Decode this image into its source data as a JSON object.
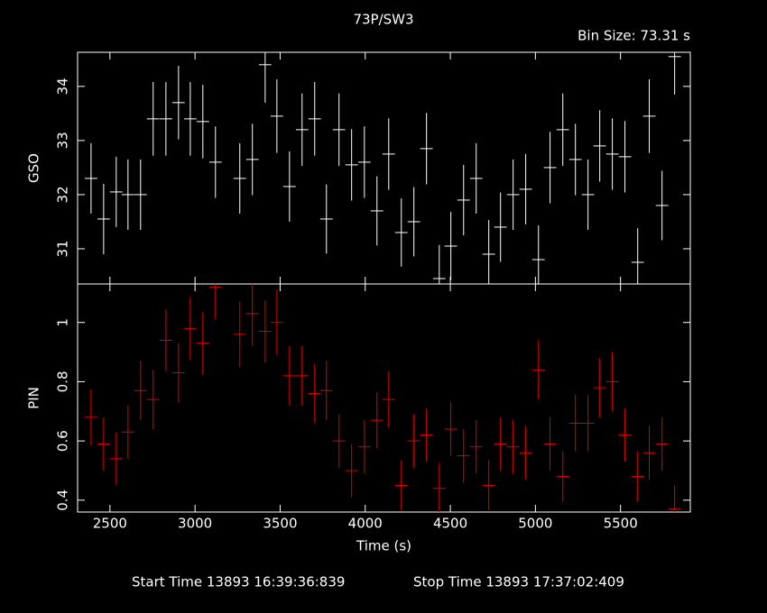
{
  "title": "73P/SW3",
  "subtitle": "Bin Size: 73.31 s",
  "footer": {
    "start": "Start Time 13893 16:39:36:839",
    "stop": "Stop Time 13893 17:37:02:409"
  },
  "chart_data": [
    {
      "type": "errorbar",
      "ylabel": "GSO",
      "x": [
        2389,
        2463,
        2537,
        2606,
        2680,
        2754,
        2829,
        2903,
        2972,
        3046,
        3120,
        3263,
        3337,
        3412,
        3481,
        3555,
        3629,
        3703,
        3772,
        3846,
        3920,
        3995,
        4069,
        4138,
        4212,
        4286,
        4360,
        4435,
        4503,
        4578,
        4652,
        4726,
        4795,
        4869,
        4943,
        5018,
        5086,
        5161,
        5235,
        5309,
        5378,
        5452,
        5526,
        5601,
        5669,
        5744,
        5818
      ],
      "xerr": 36.66,
      "xlim": [
        2310,
        5910
      ],
      "xticks": [
        2500,
        3000,
        3500,
        4000,
        4500,
        5000,
        5500
      ],
      "ylim": [
        30.35,
        34.63
      ],
      "yticks": [
        31,
        32,
        33,
        34
      ],
      "series": [
        {
          "color": "#ffffff",
          "values": [
            32.3,
            31.55,
            32.05,
            32.0,
            32.0,
            33.4,
            33.4,
            33.7,
            33.4,
            33.35,
            32.6,
            32.3,
            32.65,
            34.4,
            33.45,
            32.15,
            33.2,
            33.4,
            31.55,
            33.2,
            32.55,
            32.6,
            31.7,
            32.75,
            31.3,
            31.5,
            32.85,
            30.45,
            31.05,
            31.9,
            32.3,
            30.9,
            31.4,
            32.0,
            32.1,
            30.8,
            32.5,
            33.2,
            32.65,
            32.0,
            32.9,
            32.75,
            32.7,
            30.75,
            33.45,
            31.8,
            34.55
          ],
          "errors": [
            0.65,
            0.65,
            0.65,
            0.65,
            0.65,
            0.68,
            0.68,
            0.68,
            0.68,
            0.68,
            0.66,
            0.65,
            0.66,
            0.7,
            0.68,
            0.65,
            0.67,
            0.68,
            0.64,
            0.67,
            0.66,
            0.66,
            0.64,
            0.66,
            0.63,
            0.64,
            0.66,
            0.62,
            0.63,
            0.65,
            0.65,
            0.63,
            0.64,
            0.65,
            0.65,
            0.63,
            0.66,
            0.67,
            0.66,
            0.65,
            0.66,
            0.66,
            0.66,
            0.63,
            0.68,
            0.64,
            0.7
          ]
        }
      ]
    },
    {
      "type": "errorbar",
      "ylabel": "PIN",
      "xlabel": "Time (s)",
      "x": [
        2389,
        2463,
        2537,
        2606,
        2680,
        2754,
        2829,
        2903,
        2972,
        3046,
        3120,
        3263,
        3337,
        3412,
        3481,
        3555,
        3629,
        3703,
        3772,
        3846,
        3920,
        3995,
        4069,
        4138,
        4212,
        4286,
        4360,
        4435,
        4503,
        4578,
        4652,
        4726,
        4795,
        4869,
        4943,
        5018,
        5086,
        5161,
        5235,
        5309,
        5378,
        5452,
        5526,
        5601,
        5669,
        5744,
        5818
      ],
      "xerr": 36.66,
      "xlim": [
        2310,
        5910
      ],
      "xticks": [
        2500,
        3000,
        3500,
        4000,
        4500,
        5000,
        5500
      ],
      "ylim": [
        0.36,
        1.13
      ],
      "yticks": [
        0.4,
        0.6,
        0.8,
        1
      ],
      "series": [
        {
          "color": "#e00000",
          "values": [
            0.68,
            0.59,
            0.54,
            0.63,
            0.77,
            0.74,
            0.94,
            0.83,
            0.98,
            0.93,
            1.12,
            0.96,
            1.03,
            0.97,
            1.0,
            0.82,
            0.82,
            0.76,
            0.77,
            0.6,
            0.5,
            0.58,
            0.67,
            0.74,
            0.45,
            0.6,
            0.62,
            0.44,
            0.64,
            0.55,
            0.58,
            0.45,
            0.59,
            0.58,
            0.56,
            0.84,
            0.59,
            0.48,
            0.66,
            0.66,
            0.78,
            0.8,
            0.62,
            0.48,
            0.56,
            0.59,
            0.37
          ],
          "errors": [
            0.095,
            0.09,
            0.09,
            0.09,
            0.1,
            0.1,
            0.105,
            0.1,
            0.105,
            0.105,
            0.11,
            0.11,
            0.11,
            0.105,
            0.11,
            0.1,
            0.1,
            0.1,
            0.1,
            0.09,
            0.09,
            0.09,
            0.095,
            0.095,
            0.085,
            0.09,
            0.09,
            0.085,
            0.09,
            0.09,
            0.09,
            0.085,
            0.09,
            0.09,
            0.09,
            0.1,
            0.09,
            0.085,
            0.095,
            0.095,
            0.1,
            0.1,
            0.09,
            0.085,
            0.09,
            0.09,
            0.08
          ]
        }
      ]
    }
  ]
}
